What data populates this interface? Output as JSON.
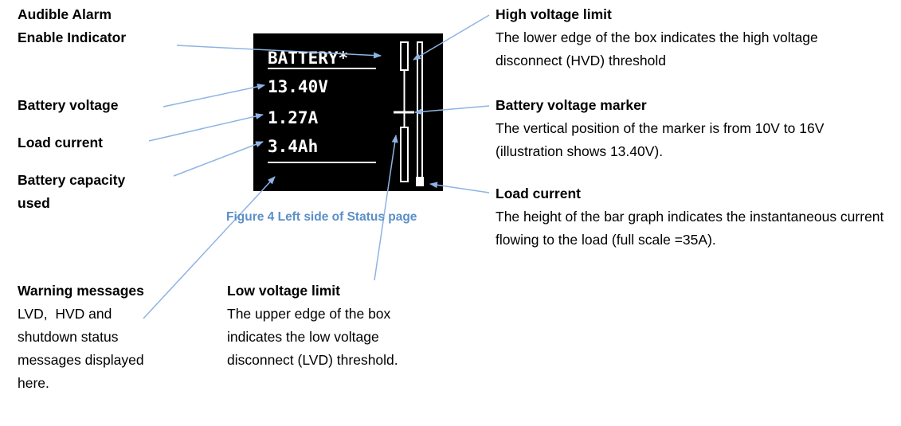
{
  "left_labels": {
    "alarm": "Audible Alarm Enable Indicator",
    "battery_voltage": "Battery voltage",
    "load_current": "Load current",
    "capacity": "Battery capacity used"
  },
  "warning": {
    "title": "Warning messages",
    "body": "LVD,  HVD and shutdown status messages displayed here."
  },
  "low_voltage": {
    "title": "Low voltage limit",
    "body": "The upper edge of the box indicates the low voltage disconnect (LVD) threshold."
  },
  "high_voltage": {
    "title": "High voltage limit",
    "body": "The lower edge of the box indicates the high voltage disconnect (HVD) threshold"
  },
  "voltage_marker": {
    "title": "Battery voltage marker",
    "body": "The vertical position of the marker is from 10V to 16V (illustration shows 13.40V)."
  },
  "load_bar": {
    "title": "Load current",
    "body": "The height of the bar graph indicates the instantaneous current flowing to the load (full scale =35A)."
  },
  "caption": "Figure 4 Left side of Status page",
  "screen": {
    "header": "BATTERY*",
    "voltage": "13.40V",
    "current": "1.27A",
    "capacity": "3.4Ah"
  }
}
